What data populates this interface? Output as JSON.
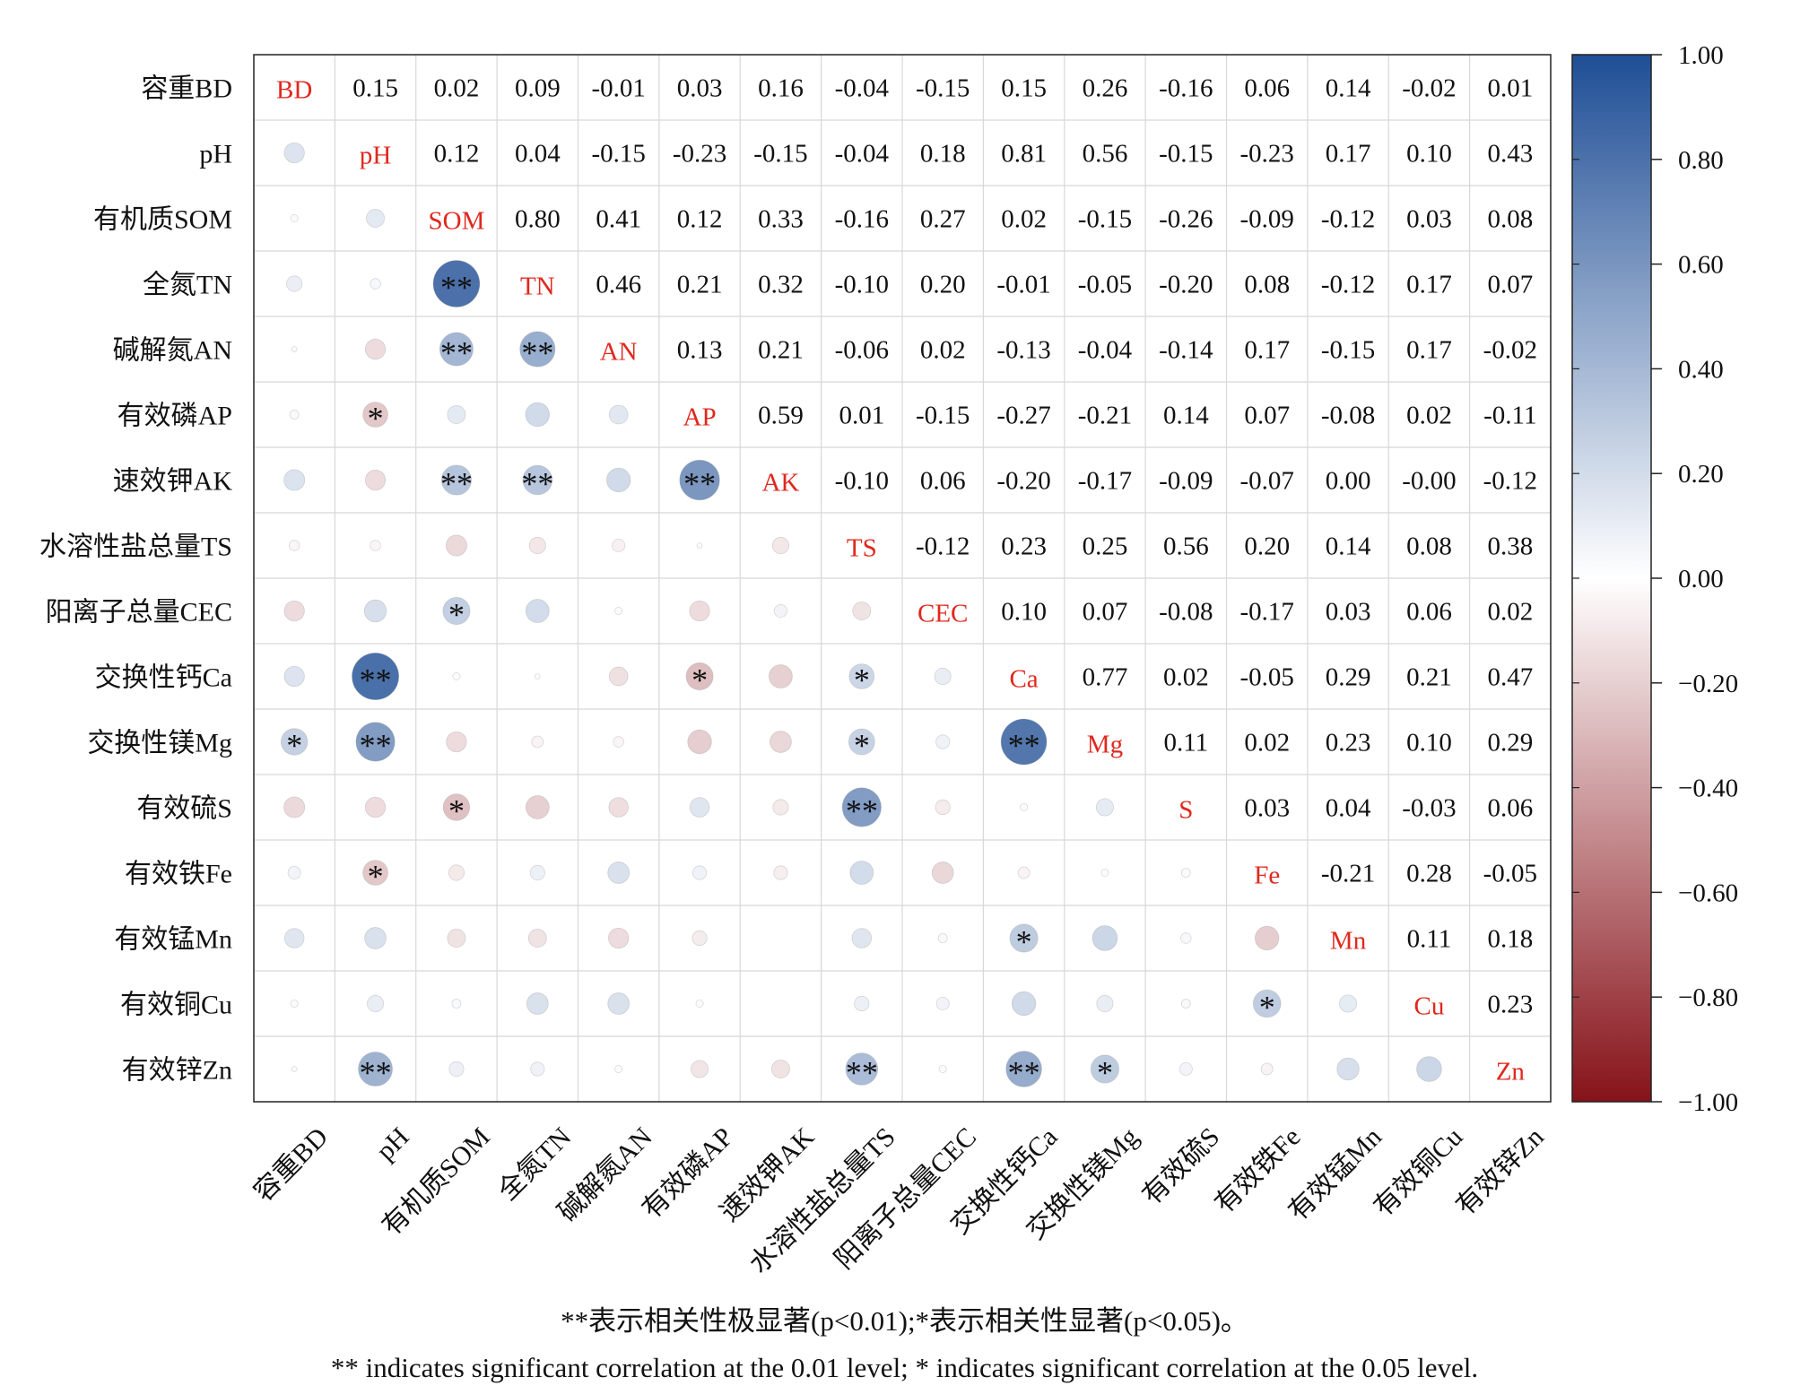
{
  "chart_data": {
    "type": "heatmap",
    "title": "",
    "variables": [
      "容重BD",
      "pH",
      "有机质SOM",
      "全氮TN",
      "碱解氮AN",
      "有效磷AP",
      "速效钾AK",
      "水溶性盐总量TS",
      "阳离子总量CEC",
      "交换性钙Ca",
      "交换性镁Mg",
      "有效硫S",
      "有效铁Fe",
      "有效锰Mn",
      "有效铜Cu",
      "有效锌Zn"
    ],
    "diagonal_labels": [
      "BD",
      "pH",
      "SOM",
      "TN",
      "AN",
      "AP",
      "AK",
      "TS",
      "CEC",
      "Ca",
      "Mg",
      "S",
      "Fe",
      "Mn",
      "Cu",
      "Zn"
    ],
    "matrix": [
      [
        1,
        0.15,
        0.02,
        0.09,
        -0.01,
        0.03,
        0.16,
        -0.04,
        -0.15,
        0.15,
        0.26,
        -0.16,
        0.06,
        0.14,
        -0.02,
        0.01
      ],
      [
        0.15,
        1,
        0.12,
        0.04,
        -0.15,
        -0.23,
        -0.15,
        -0.04,
        0.18,
        0.81,
        0.56,
        -0.15,
        -0.23,
        0.17,
        0.1,
        0.43
      ],
      [
        0.02,
        0.12,
        1,
        0.8,
        0.41,
        0.12,
        0.33,
        -0.16,
        0.27,
        0.02,
        -0.15,
        -0.26,
        -0.09,
        -0.12,
        0.03,
        0.08
      ],
      [
        0.09,
        0.04,
        0.8,
        1,
        0.46,
        0.21,
        0.32,
        -0.1,
        0.2,
        -0.01,
        -0.05,
        -0.2,
        0.08,
        -0.12,
        0.17,
        0.07
      ],
      [
        -0.01,
        -0.15,
        0.41,
        0.46,
        1,
        0.13,
        0.21,
        -0.06,
        0.02,
        -0.13,
        -0.04,
        -0.14,
        0.17,
        -0.15,
        0.17,
        -0.02
      ],
      [
        0.03,
        -0.23,
        0.12,
        0.21,
        0.13,
        1,
        0.59,
        0.01,
        -0.15,
        -0.27,
        -0.21,
        0.14,
        0.07,
        -0.08,
        0.02,
        -0.11
      ],
      [
        0.16,
        -0.15,
        0.33,
        0.32,
        0.21,
        0.59,
        1,
        -0.1,
        0.06,
        -0.2,
        -0.17,
        -0.09,
        -0.07,
        0.0,
        -0.0,
        -0.12
      ],
      [
        -0.04,
        -0.04,
        -0.16,
        -0.1,
        -0.06,
        0.01,
        -0.1,
        1,
        -0.12,
        0.23,
        0.25,
        0.56,
        0.2,
        0.14,
        0.08,
        0.38
      ],
      [
        -0.15,
        0.18,
        0.27,
        0.2,
        0.02,
        -0.15,
        0.06,
        -0.12,
        1,
        0.1,
        0.07,
        -0.08,
        -0.17,
        0.03,
        0.06,
        0.02
      ],
      [
        0.15,
        0.81,
        0.02,
        -0.01,
        -0.13,
        -0.27,
        -0.2,
        0.23,
        0.1,
        1,
        0.77,
        0.02,
        -0.05,
        0.29,
        0.21,
        0.47
      ],
      [
        0.26,
        0.56,
        -0.15,
        -0.05,
        -0.04,
        -0.21,
        -0.17,
        0.25,
        0.07,
        0.77,
        1,
        0.11,
        0.02,
        0.23,
        0.1,
        0.29
      ],
      [
        -0.16,
        -0.15,
        -0.26,
        -0.2,
        -0.14,
        0.14,
        -0.09,
        0.56,
        -0.08,
        0.02,
        0.11,
        1,
        0.03,
        0.04,
        -0.03,
        0.06
      ],
      [
        0.06,
        -0.23,
        -0.09,
        0.08,
        0.17,
        0.07,
        -0.07,
        0.2,
        -0.17,
        -0.05,
        0.02,
        0.03,
        1,
        -0.21,
        0.28,
        -0.05
      ],
      [
        0.14,
        0.17,
        -0.12,
        -0.12,
        -0.15,
        -0.08,
        0.0,
        0.14,
        0.03,
        0.29,
        0.23,
        0.04,
        -0.21,
        1,
        0.11,
        0.18
      ],
      [
        -0.02,
        0.1,
        0.03,
        0.17,
        0.17,
        0.02,
        -0.0,
        0.08,
        0.06,
        0.21,
        0.1,
        -0.03,
        0.28,
        0.11,
        1,
        0.23
      ],
      [
        0.01,
        0.43,
        0.08,
        0.07,
        -0.02,
        -0.11,
        -0.12,
        0.38,
        0.02,
        0.47,
        0.29,
        0.06,
        -0.05,
        0.18,
        0.23,
        1
      ]
    ],
    "upper_display": [
      [
        null,
        "0.15",
        "0.02",
        "0.09",
        "-0.01",
        "0.03",
        "0.16",
        "-0.04",
        "-0.15",
        "0.15",
        "0.26",
        "-0.16",
        "0.06",
        "0.14",
        "-0.02",
        "0.01"
      ],
      [
        null,
        null,
        "0.12",
        "0.04",
        "-0.15",
        "-0.23",
        "-0.15",
        "-0.04",
        "0.18",
        "0.81",
        "0.56",
        "-0.15",
        "-0.23",
        "0.17",
        "0.10",
        "0.43"
      ],
      [
        null,
        null,
        null,
        "0.80",
        "0.41",
        "0.12",
        "0.33",
        "-0.16",
        "0.27",
        "0.02",
        "-0.15",
        "-0.26",
        "-0.09",
        "-0.12",
        "0.03",
        "0.08"
      ],
      [
        null,
        null,
        null,
        null,
        "0.46",
        "0.21",
        "0.32",
        "-0.10",
        "0.20",
        "-0.01",
        "-0.05",
        "-0.20",
        "0.08",
        "-0.12",
        "0.17",
        "0.07"
      ],
      [
        null,
        null,
        null,
        null,
        null,
        "0.13",
        "0.21",
        "-0.06",
        "0.02",
        "-0.13",
        "-0.04",
        "-0.14",
        "0.17",
        "-0.15",
        "0.17",
        "-0.02"
      ],
      [
        null,
        null,
        null,
        null,
        null,
        null,
        "0.59",
        "0.01",
        "-0.15",
        "-0.27",
        "-0.21",
        "0.14",
        "0.07",
        "-0.08",
        "0.02",
        "-0.11"
      ],
      [
        null,
        null,
        null,
        null,
        null,
        null,
        null,
        "-0.10",
        "0.06",
        "-0.20",
        "-0.17",
        "-0.09",
        "-0.07",
        "0.00",
        "-0.00",
        "-0.12"
      ],
      [
        null,
        null,
        null,
        null,
        null,
        null,
        null,
        null,
        "-0.12",
        "0.23",
        "0.25",
        "0.56",
        "0.20",
        "0.14",
        "0.08",
        "0.38"
      ],
      [
        null,
        null,
        null,
        null,
        null,
        null,
        null,
        null,
        null,
        "0.10",
        "0.07",
        "-0.08",
        "-0.17",
        "0.03",
        "0.06",
        "0.02"
      ],
      [
        null,
        null,
        null,
        null,
        null,
        null,
        null,
        null,
        null,
        null,
        "0.77",
        "0.02",
        "-0.05",
        "0.29",
        "0.21",
        "0.47"
      ],
      [
        null,
        null,
        null,
        null,
        null,
        null,
        null,
        null,
        null,
        null,
        null,
        "0.11",
        "0.02",
        "0.23",
        "0.10",
        "0.29"
      ],
      [
        null,
        null,
        null,
        null,
        null,
        null,
        null,
        null,
        null,
        null,
        null,
        null,
        "0.03",
        "0.04",
        "-0.03",
        "0.06"
      ],
      [
        null,
        null,
        null,
        null,
        null,
        null,
        null,
        null,
        null,
        null,
        null,
        null,
        null,
        "-0.21",
        "0.28",
        "-0.05"
      ],
      [
        null,
        null,
        null,
        null,
        null,
        null,
        null,
        null,
        null,
        null,
        null,
        null,
        null,
        null,
        "0.11",
        "0.18"
      ],
      [
        null,
        null,
        null,
        null,
        null,
        null,
        null,
        null,
        null,
        null,
        null,
        null,
        null,
        null,
        null,
        "0.23"
      ],
      [
        null,
        null,
        null,
        null,
        null,
        null,
        null,
        null,
        null,
        null,
        null,
        null,
        null,
        null,
        null,
        null
      ]
    ],
    "significance": [
      [
        10,
        0,
        "*"
      ],
      [
        5,
        1,
        "*"
      ],
      [
        9,
        1,
        "**"
      ],
      [
        10,
        1,
        "**"
      ],
      [
        12,
        1,
        "*"
      ],
      [
        15,
        1,
        "**"
      ],
      [
        3,
        2,
        "**"
      ],
      [
        4,
        2,
        "**"
      ],
      [
        6,
        2,
        "**"
      ],
      [
        8,
        2,
        "*"
      ],
      [
        11,
        2,
        "*"
      ],
      [
        4,
        3,
        "**"
      ],
      [
        6,
        3,
        "**"
      ],
      [
        6,
        5,
        "**"
      ],
      [
        9,
        5,
        "*"
      ],
      [
        9,
        7,
        "*"
      ],
      [
        10,
        7,
        "*"
      ],
      [
        11,
        7,
        "**"
      ],
      [
        15,
        7,
        "**"
      ],
      [
        10,
        9,
        "**"
      ],
      [
        13,
        9,
        "*"
      ],
      [
        15,
        9,
        "**"
      ],
      [
        15,
        10,
        "*"
      ],
      [
        14,
        12,
        "*"
      ]
    ],
    "colorbar": {
      "min": -1.0,
      "max": 1.0,
      "ticks": [
        "1.00",
        "0.80",
        "0.60",
        "0.40",
        "0.20",
        "0.00",
        "−0.20",
        "−0.40",
        "−0.60",
        "−0.80",
        "−1.00"
      ],
      "colors": {
        "positive": "#1f4e95",
        "neutral": "#ffffff",
        "negative": "#861219"
      }
    },
    "grid": true
  },
  "notes": {
    "cn": "**表示相关性极显著(p<0.01);*表示相关性显著(p<0.05)。",
    "en": "** indicates significant correlation at the 0.01 level; * indicates significant correlation at the 0.05 level."
  }
}
